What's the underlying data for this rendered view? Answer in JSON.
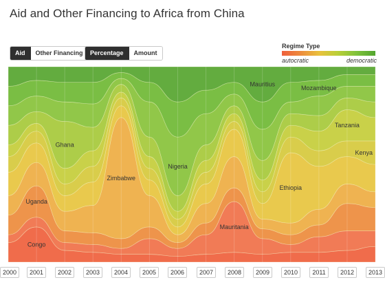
{
  "title": "Aid and Other Financing to Africa from China",
  "toggles": {
    "financing": [
      {
        "label": "Aid",
        "active": true
      },
      {
        "label": "Other Financing",
        "active": false
      }
    ],
    "measure": [
      {
        "label": "Percentage",
        "active": true
      },
      {
        "label": "Amount",
        "active": false
      }
    ]
  },
  "legend": {
    "title": "Regime Type",
    "low_label": "autocratic",
    "high_label": "democratic",
    "colors": [
      "#ef5f3c",
      "#ed8b3c",
      "#e9c13c",
      "#b9cf38",
      "#7ec23a",
      "#52a52f"
    ]
  },
  "chart_data": {
    "type": "area",
    "stacked": "percentage",
    "x": [
      "2000",
      "2001",
      "2002",
      "2003",
      "2004",
      "2005",
      "2006",
      "2007",
      "2008",
      "2009",
      "2010",
      "2011",
      "2012",
      "2013"
    ],
    "series": [
      {
        "name": "Congo",
        "color": "#ef5f3c",
        "values": [
          10,
          18,
          6,
          5,
          4,
          4,
          3,
          4,
          5,
          4,
          5,
          5,
          6,
          8
        ]
      },
      {
        "name": "Mauritania",
        "color": "#f07048",
        "values": [
          4,
          5,
          4,
          4,
          3,
          8,
          4,
          10,
          26,
          8,
          4,
          8,
          10,
          8
        ]
      },
      {
        "name": "Uganda",
        "color": "#ed8b3c",
        "values": [
          10,
          16,
          6,
          6,
          5,
          6,
          3,
          6,
          7,
          5,
          5,
          6,
          14,
          12
        ]
      },
      {
        "name": "Zimbabwe",
        "color": "#eeac42",
        "values": [
          10,
          12,
          10,
          14,
          62,
          16,
          4,
          10,
          16,
          5,
          6,
          8,
          10,
          8
        ]
      },
      {
        "name": "Ethiopia",
        "color": "#e7c43e",
        "values": [
          12,
          10,
          8,
          12,
          6,
          8,
          4,
          10,
          14,
          8,
          36,
          22,
          14,
          14
        ]
      },
      {
        "name": "Kenya",
        "color": "#d6c93c",
        "values": [
          8,
          6,
          6,
          8,
          4,
          6,
          4,
          6,
          4,
          6,
          8,
          8,
          8,
          12
        ]
      },
      {
        "name": "Tanzania",
        "color": "#c4cd3a",
        "values": [
          6,
          4,
          8,
          8,
          3,
          6,
          4,
          6,
          4,
          6,
          6,
          10,
          16,
          12
        ]
      },
      {
        "name": "Ghana",
        "color": "#a6c93a",
        "values": [
          10,
          6,
          24,
          12,
          4,
          10,
          8,
          8,
          4,
          10,
          6,
          8,
          6,
          8
        ]
      },
      {
        "name": "Nigeria",
        "color": "#88c23a",
        "values": [
          10,
          8,
          10,
          12,
          3,
          18,
          30,
          16,
          6,
          16,
          6,
          10,
          6,
          8
        ]
      },
      {
        "name": "Mozambique",
        "color": "#6fb834",
        "values": [
          10,
          8,
          10,
          11,
          3,
          10,
          18,
          12,
          6,
          14,
          10,
          8,
          6,
          6
        ]
      },
      {
        "name": "Mauritius",
        "color": "#56a52f",
        "values": [
          10,
          7,
          8,
          8,
          3,
          8,
          18,
          12,
          8,
          18,
          8,
          7,
          4,
          4
        ]
      }
    ],
    "labels": [
      {
        "text": "Uganda",
        "series": "Uganda",
        "year": "2001"
      },
      {
        "text": "Congo",
        "series": "Congo",
        "year": "2001"
      },
      {
        "text": "Ghana",
        "series": "Ghana",
        "year": "2002"
      },
      {
        "text": "Zimbabwe",
        "series": "Zimbabwe",
        "year": "2004"
      },
      {
        "text": "Nigeria",
        "series": "Nigeria",
        "year": "2006"
      },
      {
        "text": "Mauritius",
        "series": "Mauritius",
        "year": "2009"
      },
      {
        "text": "Mauritania",
        "series": "Mauritania",
        "year": "2008"
      },
      {
        "text": "Mozambique",
        "series": "Mozambique",
        "year": "2011"
      },
      {
        "text": "Ethiopia",
        "series": "Ethiopia",
        "year": "2010"
      },
      {
        "text": "Tanzania",
        "series": "Tanzania",
        "year": "2012"
      },
      {
        "text": "Kenya",
        "series": "Kenya",
        "year": "2013"
      }
    ],
    "ylim": [
      0,
      100
    ]
  }
}
